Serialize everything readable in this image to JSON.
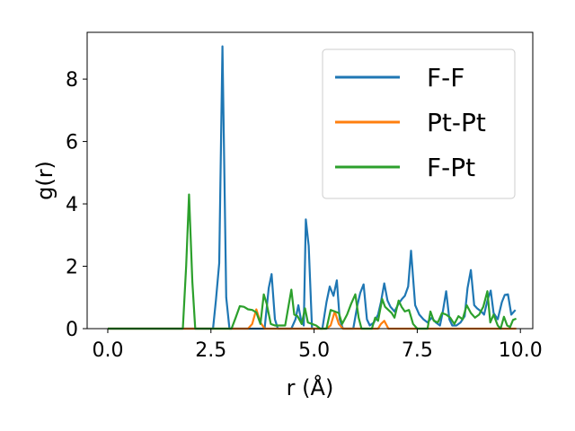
{
  "chart_data": {
    "type": "line",
    "xlabel": "r (Å)",
    "ylabel": "g(r)",
    "xlim": [
      -0.5,
      10.3
    ],
    "ylim": [
      0,
      9.5
    ],
    "xticks": [
      0.0,
      2.5,
      5.0,
      7.5,
      10.0
    ],
    "xtick_labels": [
      "0.0",
      "2.5",
      "5.0",
      "7.5",
      "10.0"
    ],
    "yticks": [
      0,
      2,
      4,
      6,
      8
    ],
    "ytick_labels": [
      "0",
      "2",
      "4",
      "6",
      "8"
    ],
    "grid": false,
    "legend_position": "top-right",
    "series": [
      {
        "name": "F-F",
        "color": "#1f77b4",
        "points": [
          [
            0.0,
            0
          ],
          [
            2.55,
            0
          ],
          [
            2.62,
            0.9
          ],
          [
            2.7,
            2.1
          ],
          [
            2.78,
            9.05
          ],
          [
            2.87,
            1.0
          ],
          [
            2.95,
            0
          ],
          [
            3.05,
            0
          ],
          [
            3.8,
            0
          ],
          [
            3.9,
            1.3
          ],
          [
            3.97,
            1.75
          ],
          [
            4.05,
            0.3
          ],
          [
            4.12,
            0
          ],
          [
            4.45,
            0
          ],
          [
            4.55,
            0.3
          ],
          [
            4.62,
            0.75
          ],
          [
            4.68,
            0.3
          ],
          [
            4.75,
            0.1
          ],
          [
            4.8,
            3.5
          ],
          [
            4.87,
            2.65
          ],
          [
            4.95,
            0
          ],
          [
            5.2,
            0
          ],
          [
            5.3,
            0.85
          ],
          [
            5.38,
            1.35
          ],
          [
            5.47,
            1.05
          ],
          [
            5.55,
            1.55
          ],
          [
            5.62,
            0.3
          ],
          [
            5.7,
            0
          ],
          [
            5.95,
            0
          ],
          [
            6.05,
            0.75
          ],
          [
            6.12,
            1.15
          ],
          [
            6.2,
            1.42
          ],
          [
            6.28,
            0.3
          ],
          [
            6.35,
            0.1
          ],
          [
            6.45,
            0.2
          ],
          [
            6.55,
            0.45
          ],
          [
            6.62,
            0.85
          ],
          [
            6.7,
            1.45
          ],
          [
            6.78,
            0.9
          ],
          [
            6.85,
            0.7
          ],
          [
            6.95,
            0.55
          ],
          [
            7.05,
            0.8
          ],
          [
            7.13,
            0.95
          ],
          [
            7.2,
            1.05
          ],
          [
            7.28,
            1.35
          ],
          [
            7.35,
            2.5
          ],
          [
            7.45,
            0.75
          ],
          [
            7.55,
            0.45
          ],
          [
            7.65,
            0.3
          ],
          [
            7.75,
            0.2
          ],
          [
            7.85,
            0.35
          ],
          [
            7.95,
            0.2
          ],
          [
            8.05,
            0.1
          ],
          [
            8.12,
            0.55
          ],
          [
            8.2,
            1.2
          ],
          [
            8.28,
            0.3
          ],
          [
            8.35,
            0.1
          ],
          [
            8.45,
            0.1
          ],
          [
            8.55,
            0.2
          ],
          [
            8.65,
            0.4
          ],
          [
            8.72,
            1.3
          ],
          [
            8.8,
            1.88
          ],
          [
            8.88,
            0.75
          ],
          [
            8.95,
            0.65
          ],
          [
            9.05,
            0.55
          ],
          [
            9.12,
            0.45
          ],
          [
            9.2,
            0.9
          ],
          [
            9.28,
            1.22
          ],
          [
            9.35,
            0.5
          ],
          [
            9.45,
            0.3
          ],
          [
            9.55,
            0.85
          ],
          [
            9.62,
            1.08
          ],
          [
            9.7,
            1.1
          ],
          [
            9.78,
            0.45
          ],
          [
            9.88,
            0.6
          ]
        ]
      },
      {
        "name": "Pt-Pt",
        "color": "#ff7f0e",
        "points": [
          [
            0.0,
            0
          ],
          [
            3.4,
            0
          ],
          [
            3.5,
            0.15
          ],
          [
            3.6,
            0.62
          ],
          [
            3.7,
            0.2
          ],
          [
            3.8,
            0
          ],
          [
            5.3,
            0
          ],
          [
            5.4,
            0.1
          ],
          [
            5.5,
            0.55
          ],
          [
            5.6,
            0.15
          ],
          [
            5.7,
            0
          ],
          [
            6.55,
            0
          ],
          [
            6.62,
            0.15
          ],
          [
            6.7,
            0.25
          ],
          [
            6.8,
            0
          ],
          [
            9.9,
            0
          ]
        ]
      },
      {
        "name": "F-Pt",
        "color": "#2ca02c",
        "points": [
          [
            0.0,
            0
          ],
          [
            1.82,
            0
          ],
          [
            1.9,
            2.0
          ],
          [
            1.97,
            4.3
          ],
          [
            2.05,
            1.5
          ],
          [
            2.12,
            0
          ],
          [
            3.0,
            0
          ],
          [
            3.1,
            0.35
          ],
          [
            3.2,
            0.72
          ],
          [
            3.3,
            0.7
          ],
          [
            3.4,
            0.62
          ],
          [
            3.5,
            0.6
          ],
          [
            3.6,
            0.52
          ],
          [
            3.7,
            0.15
          ],
          [
            3.78,
            1.1
          ],
          [
            3.85,
            0.8
          ],
          [
            3.95,
            0.15
          ],
          [
            4.05,
            0.1
          ],
          [
            4.15,
            0.1
          ],
          [
            4.3,
            0.1
          ],
          [
            4.45,
            1.25
          ],
          [
            4.52,
            0.45
          ],
          [
            4.6,
            0.4
          ],
          [
            4.7,
            0.15
          ],
          [
            4.78,
            0.65
          ],
          [
            4.85,
            0.2
          ],
          [
            4.95,
            0.15
          ],
          [
            5.05,
            0.1
          ],
          [
            5.15,
            0
          ],
          [
            5.3,
            0
          ],
          [
            5.4,
            0.6
          ],
          [
            5.5,
            0.55
          ],
          [
            5.6,
            0.5
          ],
          [
            5.68,
            0.15
          ],
          [
            5.8,
            0.45
          ],
          [
            5.9,
            0.8
          ],
          [
            6.0,
            1.1
          ],
          [
            6.08,
            0.35
          ],
          [
            6.15,
            0
          ],
          [
            6.4,
            0
          ],
          [
            6.48,
            0.35
          ],
          [
            6.55,
            0.25
          ],
          [
            6.65,
            0.95
          ],
          [
            6.72,
            0.7
          ],
          [
            6.8,
            0.6
          ],
          [
            6.88,
            0.5
          ],
          [
            6.95,
            0.35
          ],
          [
            7.05,
            0.9
          ],
          [
            7.12,
            0.7
          ],
          [
            7.2,
            0.55
          ],
          [
            7.3,
            0.6
          ],
          [
            7.4,
            0.15
          ],
          [
            7.5,
            0
          ],
          [
            7.75,
            0
          ],
          [
            7.82,
            0.55
          ],
          [
            7.9,
            0.25
          ],
          [
            8.0,
            0.2
          ],
          [
            8.1,
            0.5
          ],
          [
            8.2,
            0.45
          ],
          [
            8.3,
            0.35
          ],
          [
            8.4,
            0.15
          ],
          [
            8.5,
            0.4
          ],
          [
            8.6,
            0.3
          ],
          [
            8.7,
            0.75
          ],
          [
            8.8,
            0.5
          ],
          [
            8.9,
            0.35
          ],
          [
            9.0,
            0.45
          ],
          [
            9.1,
            0.7
          ],
          [
            9.2,
            1.2
          ],
          [
            9.27,
            0.2
          ],
          [
            9.35,
            0.45
          ],
          [
            9.45,
            0.1
          ],
          [
            9.52,
            0
          ],
          [
            9.6,
            0.38
          ],
          [
            9.68,
            0.1
          ],
          [
            9.75,
            0.05
          ],
          [
            9.82,
            0.28
          ],
          [
            9.9,
            0.32
          ]
        ]
      }
    ]
  }
}
